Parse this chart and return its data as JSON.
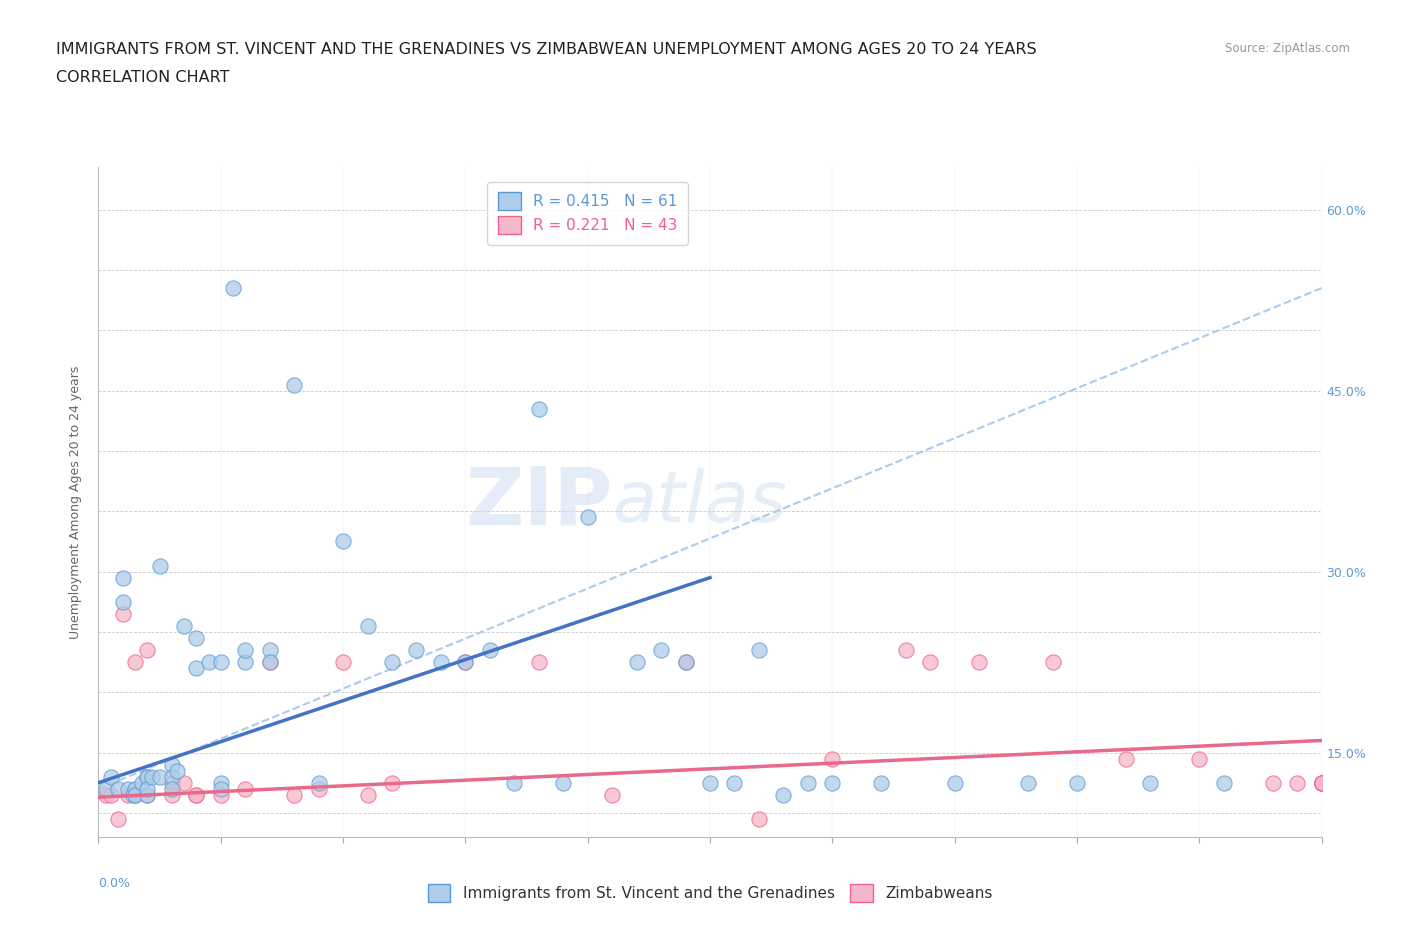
{
  "title_line1": "IMMIGRANTS FROM ST. VINCENT AND THE GRENADINES VS ZIMBABWEAN UNEMPLOYMENT AMONG AGES 20 TO 24 YEARS",
  "title_line2": "CORRELATION CHART",
  "source": "Source: ZipAtlas.com",
  "ylabel": "Unemployment Among Ages 20 to 24 years",
  "xlim": [
    0.0,
    0.05
  ],
  "ylim": [
    0.08,
    0.635
  ],
  "yticks": [
    0.1,
    0.15,
    0.2,
    0.25,
    0.3,
    0.35,
    0.4,
    0.45,
    0.5,
    0.55,
    0.6
  ],
  "ytick_right_labels": [
    "",
    "15.0%",
    "",
    "",
    "30.0%",
    "",
    "",
    "45.0%",
    "",
    "",
    "60.0%"
  ],
  "xticks": [
    0.0,
    0.005,
    0.01,
    0.015,
    0.02,
    0.025,
    0.03,
    0.035,
    0.04,
    0.045,
    0.05
  ],
  "blue_R": 0.415,
  "blue_N": 61,
  "pink_R": 0.221,
  "pink_N": 43,
  "blue_fill_color": "#aecde8",
  "pink_fill_color": "#f5b8c8",
  "blue_edge_color": "#5b9bd5",
  "pink_edge_color": "#f06090",
  "blue_line_color": "#4472c4",
  "pink_line_color": "#e8698a",
  "dashed_line_color": "#aaccee",
  "legend_label_blue": "Immigrants from St. Vincent and the Grenadines",
  "legend_label_pink": "Zimbabweans",
  "watermark_zip": "ZIP",
  "watermark_atlas": "atlas",
  "blue_scatter_x": [
    0.0003,
    0.0005,
    0.0008,
    0.001,
    0.001,
    0.0012,
    0.0014,
    0.0015,
    0.0015,
    0.0018,
    0.002,
    0.002,
    0.002,
    0.002,
    0.0022,
    0.0025,
    0.0025,
    0.003,
    0.003,
    0.003,
    0.0032,
    0.0035,
    0.004,
    0.004,
    0.0045,
    0.005,
    0.005,
    0.005,
    0.0055,
    0.006,
    0.006,
    0.007,
    0.007,
    0.008,
    0.009,
    0.01,
    0.011,
    0.012,
    0.013,
    0.014,
    0.015,
    0.016,
    0.017,
    0.018,
    0.019,
    0.02,
    0.022,
    0.023,
    0.024,
    0.025,
    0.026,
    0.027,
    0.028,
    0.029,
    0.03,
    0.032,
    0.035,
    0.038,
    0.04,
    0.043,
    0.046
  ],
  "blue_scatter_y": [
    0.12,
    0.13,
    0.12,
    0.295,
    0.275,
    0.12,
    0.115,
    0.12,
    0.115,
    0.125,
    0.13,
    0.115,
    0.13,
    0.12,
    0.13,
    0.305,
    0.13,
    0.14,
    0.13,
    0.12,
    0.135,
    0.255,
    0.22,
    0.245,
    0.225,
    0.125,
    0.225,
    0.12,
    0.535,
    0.225,
    0.235,
    0.235,
    0.225,
    0.455,
    0.125,
    0.325,
    0.255,
    0.225,
    0.235,
    0.225,
    0.225,
    0.235,
    0.125,
    0.435,
    0.125,
    0.345,
    0.225,
    0.235,
    0.225,
    0.125,
    0.125,
    0.235,
    0.115,
    0.125,
    0.125,
    0.125,
    0.125,
    0.125,
    0.125,
    0.125,
    0.125
  ],
  "pink_scatter_x": [
    0.0003,
    0.0005,
    0.0008,
    0.001,
    0.0012,
    0.0015,
    0.0015,
    0.002,
    0.002,
    0.003,
    0.003,
    0.0035,
    0.004,
    0.004,
    0.005,
    0.006,
    0.007,
    0.008,
    0.009,
    0.01,
    0.011,
    0.012,
    0.015,
    0.018,
    0.021,
    0.024,
    0.027,
    0.03,
    0.033,
    0.034,
    0.036,
    0.039,
    0.042,
    0.045,
    0.048,
    0.049,
    0.05,
    0.05,
    0.05,
    0.05,
    0.05,
    0.05,
    0.05
  ],
  "pink_scatter_y": [
    0.115,
    0.115,
    0.095,
    0.265,
    0.115,
    0.115,
    0.225,
    0.235,
    0.115,
    0.125,
    0.115,
    0.125,
    0.115,
    0.115,
    0.115,
    0.12,
    0.225,
    0.115,
    0.12,
    0.225,
    0.115,
    0.125,
    0.225,
    0.225,
    0.115,
    0.225,
    0.095,
    0.145,
    0.235,
    0.225,
    0.225,
    0.225,
    0.145,
    0.145,
    0.125,
    0.125,
    0.125,
    0.125,
    0.125,
    0.125,
    0.125,
    0.125,
    0.125
  ],
  "blue_trendline_x": [
    0.0,
    0.025
  ],
  "blue_trendline_y": [
    0.125,
    0.295
  ],
  "pink_trendline_x": [
    0.0,
    0.05
  ],
  "pink_trendline_y": [
    0.113,
    0.16
  ],
  "dashed_trendline_x": [
    0.0,
    0.05
  ],
  "dashed_trendline_y": [
    0.12,
    0.535
  ],
  "title_fontsize": 11.5,
  "subtitle_fontsize": 11.5,
  "axis_label_fontsize": 9,
  "tick_fontsize": 9,
  "legend_fontsize": 11
}
